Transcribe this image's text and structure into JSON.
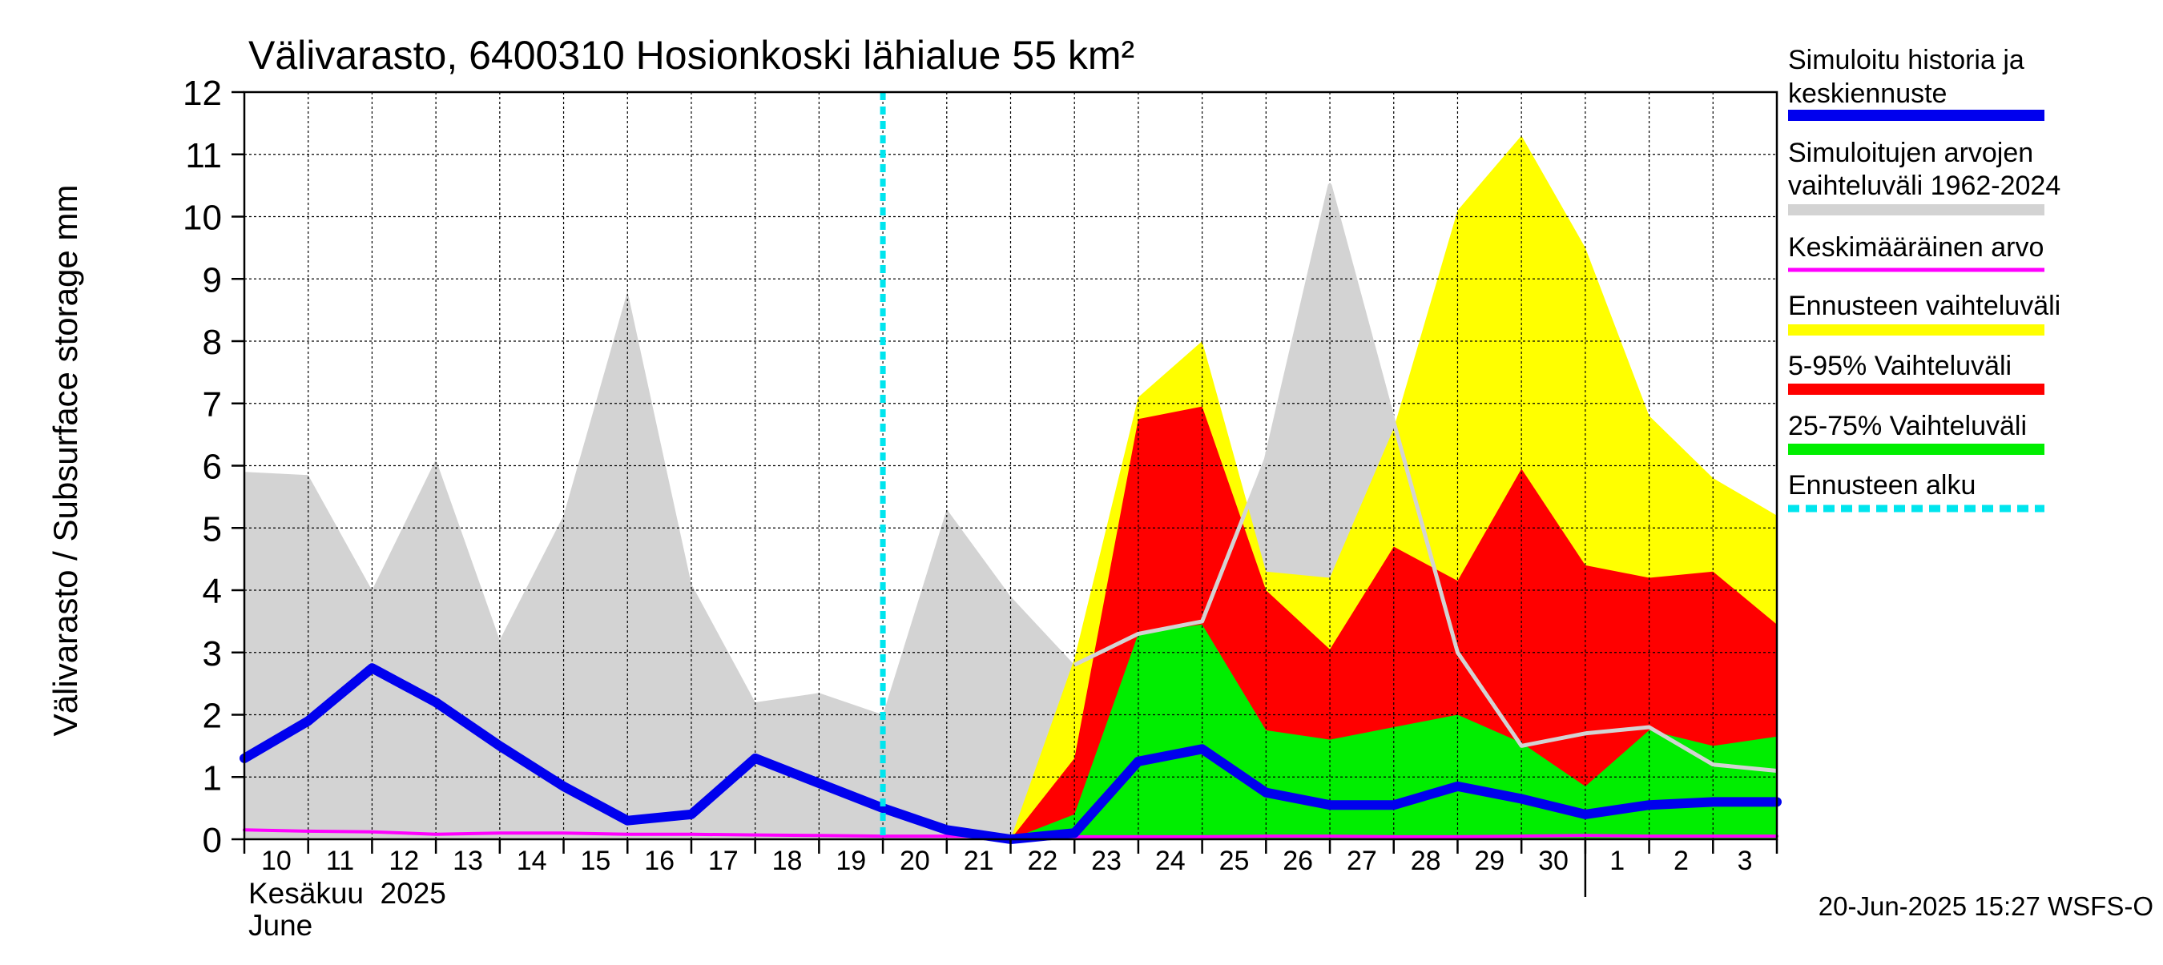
{
  "chart_data": {
    "type": "area",
    "title": "Välivarasto, 6400310 Hosionkoski lähialue 55 km²",
    "ylabel": "Välivarasto / Subsurface storage  mm",
    "ylim": [
      0,
      12
    ],
    "yticks": [
      0,
      1,
      2,
      3,
      4,
      5,
      6,
      7,
      8,
      9,
      10,
      11,
      12
    ],
    "grid": true,
    "legend_position": "right",
    "x_dates": [
      "2025-06-10",
      "2025-06-11",
      "2025-06-12",
      "2025-06-13",
      "2025-06-14",
      "2025-06-15",
      "2025-06-16",
      "2025-06-17",
      "2025-06-18",
      "2025-06-19",
      "2025-06-20",
      "2025-06-21",
      "2025-06-22",
      "2025-06-23",
      "2025-06-24",
      "2025-06-25",
      "2025-06-26",
      "2025-06-27",
      "2025-06-28",
      "2025-06-29",
      "2025-06-30",
      "2025-07-01",
      "2025-07-02",
      "2025-07-03",
      "2025-07-04"
    ],
    "x_tick_labels": [
      "10",
      "11",
      "12",
      "13",
      "14",
      "15",
      "16",
      "17",
      "18",
      "19",
      "20",
      "21",
      "22",
      "23",
      "24",
      "25",
      "26",
      "27",
      "28",
      "29",
      "30",
      "1",
      "2",
      "3"
    ],
    "month_label_fi": "Kesäkuu  2025",
    "month_label_en": "June",
    "forecast_start": "2025-06-20",
    "footer": "20-Jun-2025 15:27 WSFS-O",
    "series": [
      {
        "name": "Simuloitujen arvojen vaihteluväli 1962-2024",
        "kind": "band",
        "color": "#d3d3d3",
        "lower": [
          0,
          0,
          0,
          0,
          0,
          0,
          0,
          0,
          0,
          0,
          0,
          0,
          0,
          0,
          0,
          0,
          0,
          0,
          0,
          0,
          0,
          0,
          0,
          0,
          0
        ],
        "upper": [
          5.9,
          5.85,
          4.0,
          6.1,
          3.2,
          5.2,
          8.8,
          4.1,
          2.2,
          2.35,
          2.0,
          5.3,
          3.9,
          2.8,
          3.3,
          3.5,
          6.1,
          10.5,
          6.7,
          3.0,
          1.5,
          1.7,
          1.8,
          1.2,
          1.1
        ]
      },
      {
        "name": "Ennusteen vaihteluväli",
        "kind": "band",
        "color": "#ffff00",
        "lower": [
          0,
          0,
          0,
          0,
          0,
          0,
          0,
          0,
          0,
          0,
          0,
          0,
          0,
          0,
          0,
          0,
          0,
          0,
          0,
          0,
          0,
          0,
          0,
          0,
          0
        ],
        "upper": [
          null,
          null,
          null,
          null,
          null,
          null,
          null,
          null,
          null,
          null,
          null,
          null,
          0,
          2.9,
          7.1,
          8.0,
          4.3,
          4.2,
          6.6,
          10.1,
          11.3,
          9.5,
          6.8,
          5.8,
          5.2
        ]
      },
      {
        "name": "5-95% Vaihteluväli",
        "kind": "band",
        "color": "#ff0000",
        "lower": [
          0,
          0,
          0,
          0,
          0,
          0,
          0,
          0,
          0,
          0,
          0,
          0,
          0,
          0,
          0,
          0,
          0,
          0,
          0,
          0,
          0,
          0,
          0,
          0,
          0
        ],
        "upper": [
          null,
          null,
          null,
          null,
          null,
          null,
          null,
          null,
          null,
          null,
          null,
          null,
          0,
          1.3,
          6.75,
          6.95,
          4.0,
          3.05,
          4.7,
          4.15,
          5.95,
          4.4,
          4.2,
          4.3,
          3.45
        ]
      },
      {
        "name": "25-75% Vaihteluväli",
        "kind": "band",
        "color": "#00ee00",
        "lower": [
          0,
          0,
          0,
          0,
          0,
          0,
          0,
          0,
          0,
          0,
          0,
          0,
          0,
          0,
          0,
          0,
          0,
          0,
          0,
          0,
          0,
          0,
          0,
          0,
          0
        ],
        "upper": [
          null,
          null,
          null,
          null,
          null,
          null,
          null,
          null,
          null,
          null,
          null,
          null,
          0,
          0.4,
          3.3,
          3.45,
          1.75,
          1.6,
          1.8,
          2.0,
          1.55,
          0.85,
          1.75,
          1.5,
          1.65
        ]
      },
      {
        "name": "Keskimääräinen arvo",
        "kind": "line",
        "color": "#ff00ff",
        "values": [
          0.15,
          0.13,
          0.12,
          0.08,
          0.1,
          0.1,
          0.08,
          0.08,
          0.07,
          0.06,
          0.05,
          0.05,
          0.04,
          0.04,
          0.04,
          0.04,
          0.05,
          0.05,
          0.04,
          0.04,
          0.05,
          0.06,
          0.05,
          0.05,
          0.05
        ]
      },
      {
        "name": "Simuloitu historia ja keskiennuste",
        "kind": "line",
        "color": "#0000ee",
        "values": [
          1.3,
          1.9,
          2.75,
          2.2,
          1.5,
          0.85,
          0.3,
          0.4,
          1.3,
          0.9,
          0.5,
          0.15,
          0.0,
          0.1,
          1.25,
          1.45,
          0.75,
          0.55,
          0.55,
          0.85,
          0.65,
          0.4,
          0.55,
          0.6,
          0.6
        ]
      }
    ],
    "legend": [
      {
        "label": "Simuloitu historia ja keskiennuste",
        "color": "#0000ee",
        "style": "thick"
      },
      {
        "label": "Simuloitujen arvojen vaihteluväli 1962-2024",
        "color": "#d3d3d3",
        "style": "thick"
      },
      {
        "label": "Keskimääräinen arvo",
        "color": "#ff00ff",
        "style": "thin"
      },
      {
        "label": "Ennusteen vaihteluväli",
        "color": "#ffff00",
        "style": "thick"
      },
      {
        "label": "5-95% Vaihteluväli",
        "color": "#ff0000",
        "style": "thick"
      },
      {
        "label": "25-75% Vaihteluväli",
        "color": "#00ee00",
        "style": "thick"
      },
      {
        "label": "Ennusteen alku",
        "color": "#00e5ee",
        "style": "dashed"
      }
    ]
  }
}
